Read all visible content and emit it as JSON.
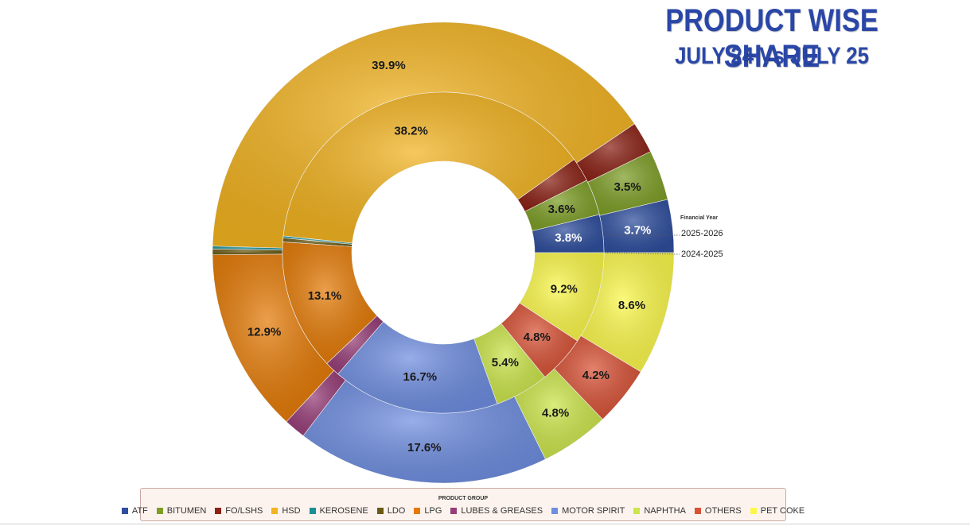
{
  "title": "PRODUCT WISE SHARE",
  "subtitle": "JULY 24 Vs JULY 25",
  "legend_series_title": "Financial Year",
  "legend_title": "PRODUCT GROUP",
  "chart_data": {
    "type": "donut",
    "categories": [
      "ATF",
      "BITUMEN",
      "FO/LSHS",
      "HSD",
      "KEROSENE",
      "LDO",
      "LPG",
      "LUBES & GREASES",
      "MOTOR SPIRIT",
      "NAPHTHA",
      "OTHERS",
      "PET COKE"
    ],
    "colors": [
      "#2f4f9e",
      "#7d9e26",
      "#8b2216",
      "#f2b320",
      "#1b8f96",
      "#6b5a14",
      "#e47a06",
      "#973e78",
      "#6f8ee0",
      "#cbe54a",
      "#d85236",
      "#fbf84a"
    ],
    "series": [
      {
        "name": "2025-2026",
        "ring": "outer",
        "values": [
          3.7,
          3.5,
          2.2,
          39.9,
          0.2,
          0.4,
          12.9,
          1.5,
          17.6,
          4.8,
          4.2,
          8.6
        ],
        "labels": [
          "3.7%",
          "3.5%",
          "",
          "39.9%",
          "",
          "",
          "12.9%",
          "",
          "17.6%",
          "4.8%",
          "4.2%",
          "8.6%"
        ]
      },
      {
        "name": "2024-2025",
        "ring": "inner",
        "values": [
          3.8,
          3.6,
          2.4,
          38.2,
          0.2,
          0.4,
          13.1,
          1.5,
          16.7,
          5.4,
          4.8,
          9.2
        ],
        "labels": [
          "3.8%",
          "3.6%",
          "",
          "38.2%",
          "",
          "",
          "13.1%",
          "",
          "16.7%",
          "5.4%",
          "4.8%",
          "9.2%"
        ]
      }
    ]
  }
}
